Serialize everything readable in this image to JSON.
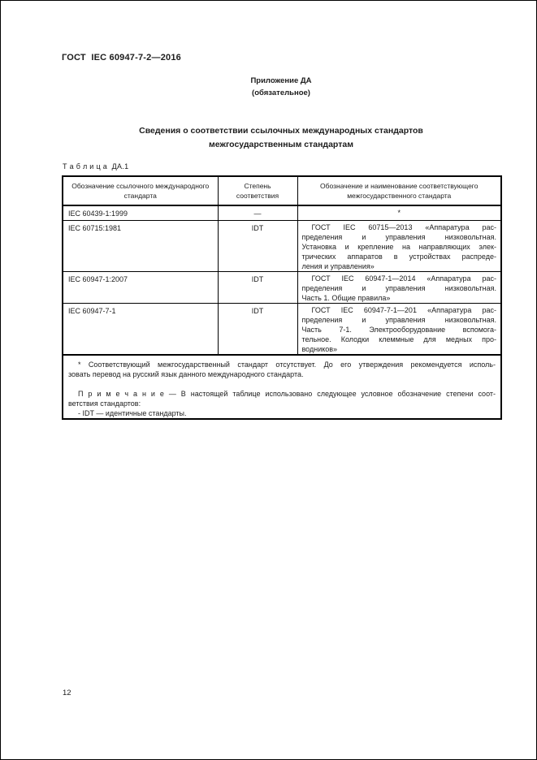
{
  "page": {
    "header_code": "ГОСТ  IEC 60947-7-2—2016",
    "page_number": "12"
  },
  "appendix": {
    "label": "Приложение ДА",
    "kind": "(обязательное)"
  },
  "title": {
    "lines": [
      "Сведения о соответствии ссылочных международных стандартов",
      "межгосударственным стандартам"
    ]
  },
  "table": {
    "caption": "Т а б л и ц а  ДА.1",
    "columns": [
      "Обозначение ссылочного международного стандарта",
      "Степень соответствия",
      "Обозначение и наименование соответствующего межгосударственного стандарта"
    ],
    "rows": [
      {
        "ref": "IEC 60439-1:1999",
        "degree": "—",
        "match_lines": [
          "*"
        ]
      },
      {
        "ref": "IEC 60715:1981",
        "degree": "IDT",
        "match_lines": [
          "ГОСТ IEC 60715—2013 «Аппаратура рас-",
          "пределения и управления низковольтная.",
          "Установка и крепление на направляющих элек-",
          "трических аппаратов в устройствах распреде-",
          "ления и управления»"
        ]
      },
      {
        "ref": "IEC 60947-1:2007",
        "degree": "IDT",
        "match_lines": [
          "ГОСТ IEC 60947-1—2014 «Аппаратура рас-",
          "пределения и управления низковольтная.",
          "Часть 1. Общие правила»"
        ]
      },
      {
        "ref": "IEC 60947-7-1",
        "degree": "IDT",
        "match_lines": [
          "ГОСТ IEC 60947-7-1—201 «Аппаратура рас-",
          "пределения и управления низковольтная.",
          "Часть 7-1. Электрооборудование вспомога-",
          "тельное. Колодки клеммные для медных про-",
          "водников»"
        ]
      }
    ],
    "footnotes": {
      "star_lines": [
        "* Соответствующий межгосударственный стандарт отсутствует. До его утверждения рекомендуется исполь-",
        "зовать перевод на русский язык данного международного стандарта."
      ],
      "note_lines": [
        "П р и м е ч а н и е — В настоящей таблице использовано следующее условное обозначение степени соот-",
        "ветствия стандартов:"
      ],
      "idt_line": "-  IDT — идентичные стандарты."
    }
  }
}
